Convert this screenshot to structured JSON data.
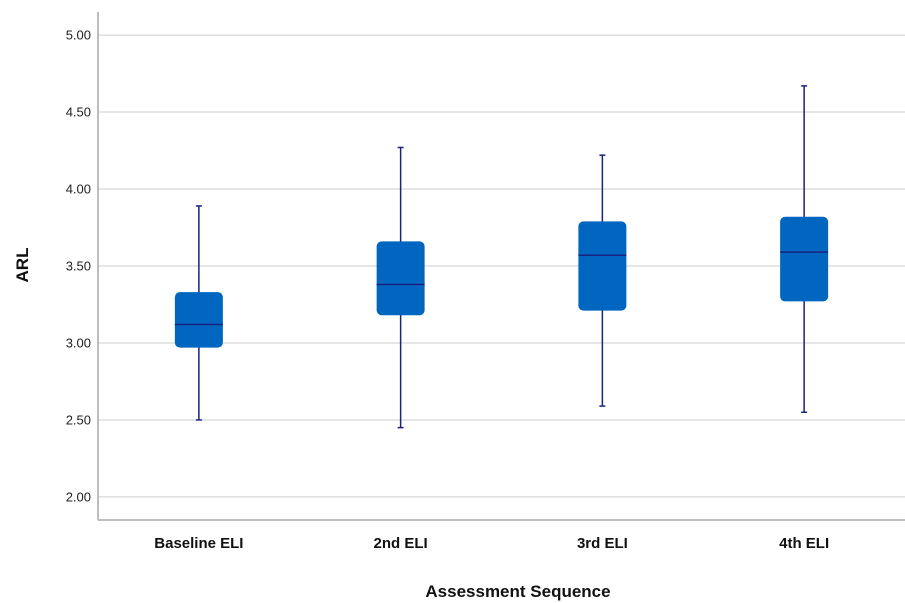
{
  "chart_data": {
    "type": "boxplot",
    "xlabel": "Assessment Sequence",
    "ylabel": "ARL",
    "ylim": [
      1.85,
      5.15
    ],
    "yticks": [
      "2.00",
      "2.50",
      "3.00",
      "3.50",
      "4.00",
      "4.50",
      "5.00"
    ],
    "categories": [
      "Baseline ELI",
      "2nd ELI",
      "3rd ELI",
      "4th ELI"
    ],
    "boxes": [
      {
        "min": 2.5,
        "q1": 2.97,
        "median": 3.12,
        "q3": 3.33,
        "max": 3.89
      },
      {
        "min": 2.45,
        "q1": 3.18,
        "median": 3.38,
        "q3": 3.66,
        "max": 4.27
      },
      {
        "min": 2.59,
        "q1": 3.21,
        "median": 3.57,
        "q3": 3.79,
        "max": 4.22
      },
      {
        "min": 2.55,
        "q1": 3.27,
        "median": 3.59,
        "q3": 3.82,
        "max": 4.67
      }
    ],
    "grid": true,
    "legend": "none",
    "colors": {
      "box": "#0066c0",
      "whisker": "#1a237e",
      "median": "#1a237e",
      "grid": "#cccccc",
      "axis": "#bdbdbd"
    }
  }
}
